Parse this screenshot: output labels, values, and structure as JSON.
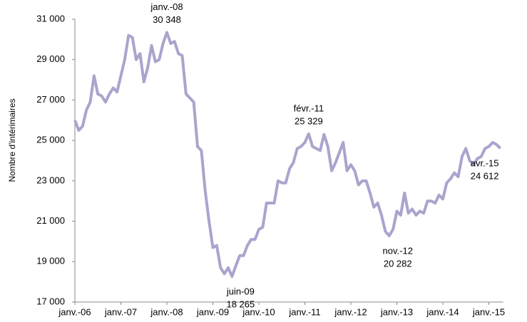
{
  "chart_data": {
    "type": "line",
    "y_label": "Nombre d'intérimaires",
    "color": "#aaa4cd",
    "categories": [
      "janv.-06",
      null,
      null,
      null,
      null,
      null,
      null,
      null,
      null,
      null,
      null,
      null,
      "janv.-07",
      null,
      null,
      null,
      null,
      null,
      null,
      null,
      null,
      null,
      null,
      null,
      "janv.-08",
      null,
      null,
      null,
      null,
      null,
      null,
      null,
      null,
      null,
      null,
      null,
      "janv.-09",
      null,
      null,
      null,
      null,
      null,
      null,
      null,
      null,
      null,
      null,
      null,
      "janv.-10",
      null,
      null,
      null,
      null,
      null,
      null,
      null,
      null,
      null,
      null,
      null,
      "janv.-11",
      null,
      null,
      null,
      null,
      null,
      null,
      null,
      null,
      null,
      null,
      null,
      "janv.-12",
      null,
      null,
      null,
      null,
      null,
      null,
      null,
      null,
      null,
      null,
      null,
      "janv.-13",
      null,
      null,
      null,
      null,
      null,
      null,
      null,
      null,
      null,
      null,
      null,
      "janv.-14",
      null,
      null,
      null,
      null,
      null,
      null,
      null,
      null,
      null,
      null,
      null,
      "janv.-15",
      null,
      null,
      null
    ],
    "values": [
      26000,
      25500,
      25700,
      26500,
      26900,
      28200,
      27300,
      27200,
      26900,
      27300,
      27600,
      27400,
      28200,
      29000,
      30200,
      30100,
      29000,
      29300,
      27900,
      28600,
      29700,
      28900,
      29000,
      29800,
      30348,
      29800,
      29900,
      29300,
      29200,
      27300,
      27100,
      26900,
      24700,
      24500,
      22500,
      21000,
      19700,
      19800,
      18700,
      18400,
      18700,
      18265,
      18800,
      19300,
      19300,
      19800,
      20100,
      20100,
      20600,
      20700,
      21900,
      21900,
      21900,
      23000,
      22900,
      22900,
      23600,
      23900,
      24600,
      24700,
      24900,
      25329,
      24700,
      24600,
      24500,
      25300,
      24700,
      23500,
      23900,
      24400,
      24900,
      23500,
      23800,
      23500,
      22800,
      23000,
      23000,
      22400,
      21700,
      21900,
      21300,
      20500,
      20282,
      20600,
      21500,
      21300,
      22400,
      21400,
      21600,
      21300,
      21500,
      21400,
      22000,
      22000,
      21900,
      22300,
      22100,
      22900,
      23100,
      23400,
      23200,
      24200,
      24600,
      24000,
      23800,
      24100,
      24200,
      24600,
      24700,
      24900,
      24800,
      24612
    ],
    "annotations": [
      null,
      null,
      null,
      null,
      null,
      null,
      null,
      null,
      null,
      null,
      null,
      null,
      null,
      null,
      null,
      null,
      null,
      null,
      null,
      null,
      null,
      null,
      null,
      null,
      "janv.-08",
      null,
      null,
      null,
      null,
      null,
      null,
      null,
      null,
      null,
      null,
      null,
      null,
      null,
      null,
      null,
      null,
      "juin-09",
      null,
      null,
      null,
      null,
      null,
      null,
      null,
      null,
      null,
      null,
      null,
      null,
      null,
      null,
      null,
      null,
      null,
      null,
      null,
      "févr.-11",
      null,
      null,
      null,
      null,
      null,
      null,
      null,
      null,
      null,
      null,
      null,
      null,
      null,
      null,
      null,
      null,
      null,
      null,
      null,
      null,
      "nov.-12",
      null,
      null,
      null,
      null,
      null,
      null,
      null,
      null,
      null,
      null,
      null,
      null,
      null,
      null,
      null,
      null,
      null,
      null,
      null,
      null,
      null,
      null,
      null,
      null,
      null,
      null,
      null,
      null,
      "avr.-15"
    ],
    "value_labels": [
      null,
      null,
      null,
      null,
      null,
      null,
      null,
      null,
      null,
      null,
      null,
      null,
      null,
      null,
      null,
      null,
      null,
      null,
      null,
      null,
      null,
      null,
      null,
      null,
      "30 348",
      null,
      null,
      null,
      null,
      null,
      null,
      null,
      null,
      null,
      null,
      null,
      null,
      null,
      null,
      null,
      null,
      "18 265",
      null,
      null,
      null,
      null,
      null,
      null,
      null,
      null,
      null,
      null,
      null,
      null,
      null,
      null,
      null,
      null,
      null,
      null,
      null,
      "25 329",
      null,
      null,
      null,
      null,
      null,
      null,
      null,
      null,
      null,
      null,
      null,
      null,
      null,
      null,
      null,
      null,
      null,
      null,
      null,
      null,
      "20 282",
      null,
      null,
      null,
      null,
      null,
      null,
      null,
      null,
      null,
      null,
      null,
      null,
      null,
      null,
      null,
      null,
      null,
      null,
      null,
      null,
      null,
      null,
      null,
      null,
      null,
      null,
      null,
      null,
      "24 612"
    ],
    "ylim": [
      17000,
      31000
    ],
    "yticks": [
      {
        "value": 17000,
        "label": "17 000"
      },
      {
        "value": 19000,
        "label": "19 000"
      },
      {
        "value": 21000,
        "label": "21 000"
      },
      {
        "value": 23000,
        "label": "23 000"
      },
      {
        "value": 25000,
        "label": "25 000"
      },
      {
        "value": 27000,
        "label": "27 000"
      },
      {
        "value": 29000,
        "label": "29 000"
      },
      {
        "value": 31000,
        "label": "31 000"
      }
    ],
    "grid": false
  }
}
